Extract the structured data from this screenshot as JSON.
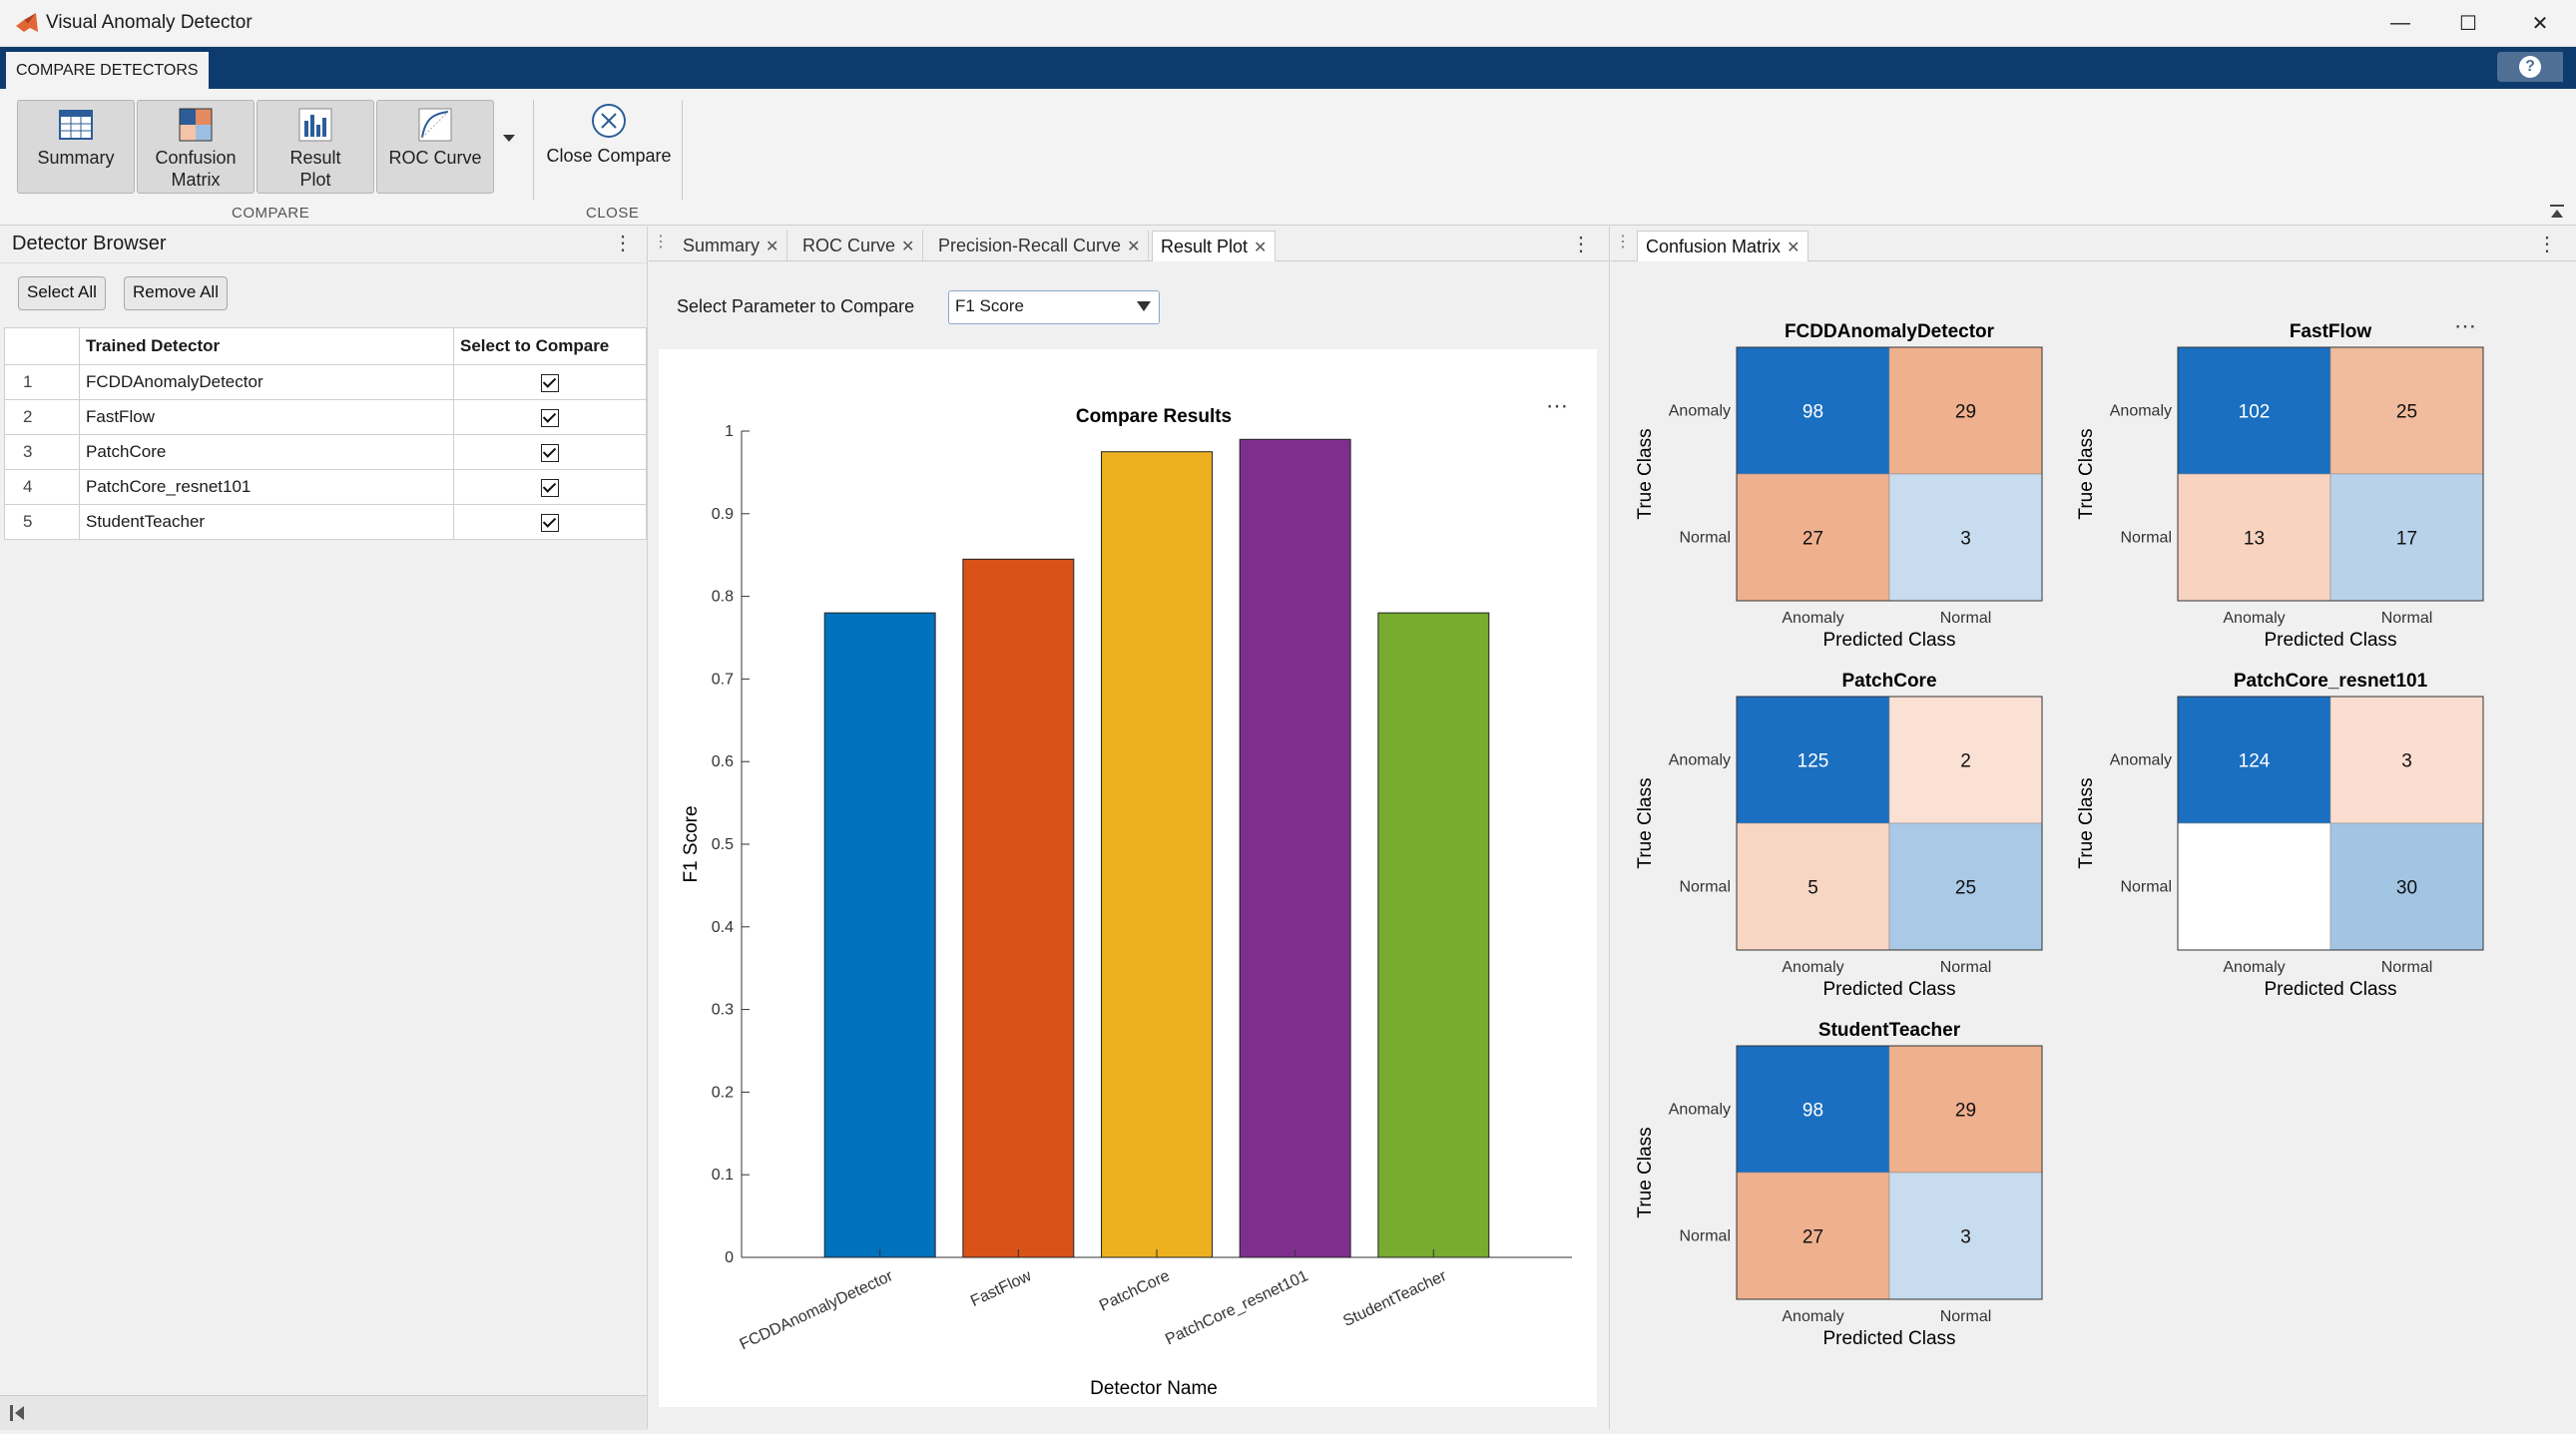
{
  "window": {
    "title": "Visual Anomaly Detector"
  },
  "ribbon": {
    "tab_label": "COMPARE DETECTORS",
    "buttons": [
      {
        "label": "Summary",
        "icon": "table-icon"
      },
      {
        "label": "Confusion Matrix",
        "icon": "confusion-matrix-icon"
      },
      {
        "label": "Result Plot",
        "icon": "bar-plot-icon"
      },
      {
        "label": "ROC Curve",
        "icon": "roc-curve-icon"
      }
    ],
    "close_compare": "Close Compare",
    "group_compare": "COMPARE",
    "group_close": "CLOSE",
    "colors": {
      "strip": "#0e3b6e",
      "button_bg": "#d9d9d9"
    }
  },
  "detector_browser": {
    "title": "Detector Browser",
    "select_all": "Select All",
    "remove_all": "Remove All",
    "columns": [
      "Trained Detector",
      "Select to Compare"
    ],
    "rows": [
      {
        "num": "1",
        "name": "FCDDAnomalyDetector",
        "selected": true
      },
      {
        "num": "2",
        "name": "FastFlow",
        "selected": true
      },
      {
        "num": "3",
        "name": "PatchCore",
        "selected": true
      },
      {
        "num": "4",
        "name": "PatchCore_resnet101",
        "selected": true
      },
      {
        "num": "5",
        "name": "StudentTeacher",
        "selected": true
      }
    ]
  },
  "doc_tabs": {
    "middle": [
      "Summary",
      "ROC Curve",
      "Precision-Recall Curve",
      "Result Plot"
    ],
    "middle_active": "Result Plot",
    "right": [
      "Confusion Matrix"
    ]
  },
  "param": {
    "label": "Select Parameter to Compare",
    "value": "F1 Score"
  },
  "chart_data": {
    "type": "bar",
    "title": "Compare Results",
    "xlabel": "Detector Name",
    "ylabel": "F1 Score",
    "categories": [
      "FCDDAnomalyDetector",
      "FastFlow",
      "PatchCore",
      "PatchCore_resnet101",
      "StudentTeacher"
    ],
    "values": [
      0.78,
      0.845,
      0.975,
      0.99,
      0.78
    ],
    "colors": [
      "#0072bd",
      "#d95319",
      "#edb120",
      "#7e2f8e",
      "#77ac30"
    ],
    "ylim": [
      0,
      1
    ],
    "yticks": [
      "0",
      "0.1",
      "0.2",
      "0.3",
      "0.4",
      "0.5",
      "0.6",
      "0.7",
      "0.8",
      "0.9",
      "1"
    ],
    "grid": false
  },
  "confusion_matrices": {
    "row_labels": [
      "Anomaly",
      "Normal"
    ],
    "col_labels": [
      "Anomaly",
      "Normal"
    ],
    "ylabel": "True Class",
    "xlabel": "Predicted Class",
    "items": [
      {
        "title": "FCDDAnomalyDetector",
        "cells": [
          "98",
          "29",
          "27",
          "3"
        ],
        "colors": [
          "#1a6fc0",
          "#efb08e",
          "#efb08e",
          "#c7dcee"
        ]
      },
      {
        "title": "FastFlow",
        "cells": [
          "102",
          "25",
          "13",
          "17"
        ],
        "colors": [
          "#1a6fc0",
          "#f1bb9e",
          "#f7d3c0",
          "#b7d2ea"
        ]
      },
      {
        "title": "PatchCore",
        "cells": [
          "125",
          "2",
          "5",
          "25"
        ],
        "colors": [
          "#1a6fc0",
          "#fbe0d4",
          "#f8d6c4",
          "#a9c9e6"
        ]
      },
      {
        "title": "PatchCore_resnet101",
        "cells": [
          "124",
          "3",
          "",
          "30"
        ],
        "colors": [
          "#1a6fc0",
          "#fbded0",
          "#ffffff",
          "#a2c5e4"
        ]
      },
      {
        "title": "StudentTeacher",
        "cells": [
          "98",
          "29",
          "27",
          "3"
        ],
        "colors": [
          "#1a6fc0",
          "#efb08e",
          "#efb08e",
          "#c7dcee"
        ]
      }
    ]
  }
}
